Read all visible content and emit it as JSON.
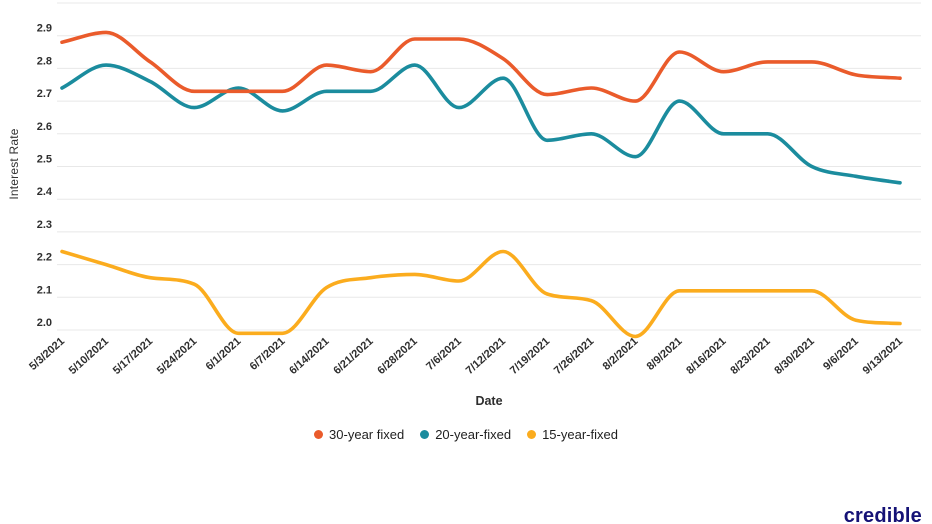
{
  "chart_data": {
    "type": "line",
    "title": "",
    "xlabel": "Date",
    "ylabel": "Interest Rate",
    "x": [
      "5/3/2021",
      "5/10/2021",
      "5/17/2021",
      "5/24/2021",
      "6/1/2021",
      "6/7/2021",
      "6/14/2021",
      "6/21/2021",
      "6/28/2021",
      "7/6/2021",
      "7/12/2021",
      "7/19/2021",
      "7/26/2021",
      "8/2/2021",
      "8/9/2021",
      "8/16/2021",
      "8/23/2021",
      "8/30/2021",
      "9/6/2021",
      "9/13/2021"
    ],
    "series": [
      {
        "name": "30-year fixed",
        "color": "#EA5B2B",
        "values": [
          2.88,
          2.91,
          2.82,
          2.73,
          2.73,
          2.73,
          2.81,
          2.79,
          2.89,
          2.89,
          2.83,
          2.72,
          2.74,
          2.7,
          2.85,
          2.79,
          2.82,
          2.82,
          2.78,
          2.77
        ]
      },
      {
        "name": "20-year-fixed",
        "color": "#1B8C9E",
        "values": [
          2.74,
          2.81,
          2.76,
          2.68,
          2.74,
          2.67,
          2.73,
          2.73,
          2.81,
          2.68,
          2.77,
          2.58,
          2.6,
          2.53,
          2.7,
          2.6,
          2.6,
          2.5,
          2.47,
          2.45
        ]
      },
      {
        "name": "15-year-fixed",
        "color": "#FBAC1E",
        "values": [
          2.24,
          2.2,
          2.16,
          2.14,
          1.99,
          1.99,
          2.13,
          2.16,
          2.17,
          2.15,
          2.24,
          2.11,
          2.09,
          1.98,
          2.12,
          2.12,
          2.12,
          2.12,
          2.03,
          2.02
        ]
      }
    ],
    "y_ticks": [
      "2.0",
      "2.1",
      "2.2",
      "2.3",
      "2.4",
      "2.5",
      "2.6",
      "2.7",
      "2.8",
      "2.9"
    ],
    "ylim": [
      2.0,
      3.0
    ],
    "grid": "horizontal",
    "legend_position": "bottom"
  },
  "branding": {
    "logo_text": "credible"
  },
  "theme": {
    "grid_color": "#E8E8E8",
    "tick_color": "#2E2E2E",
    "axis_title_color": "#333333",
    "legend_text_color": "#1F1F1F",
    "logo_color": "#151276",
    "background": "#FFFFFF"
  }
}
